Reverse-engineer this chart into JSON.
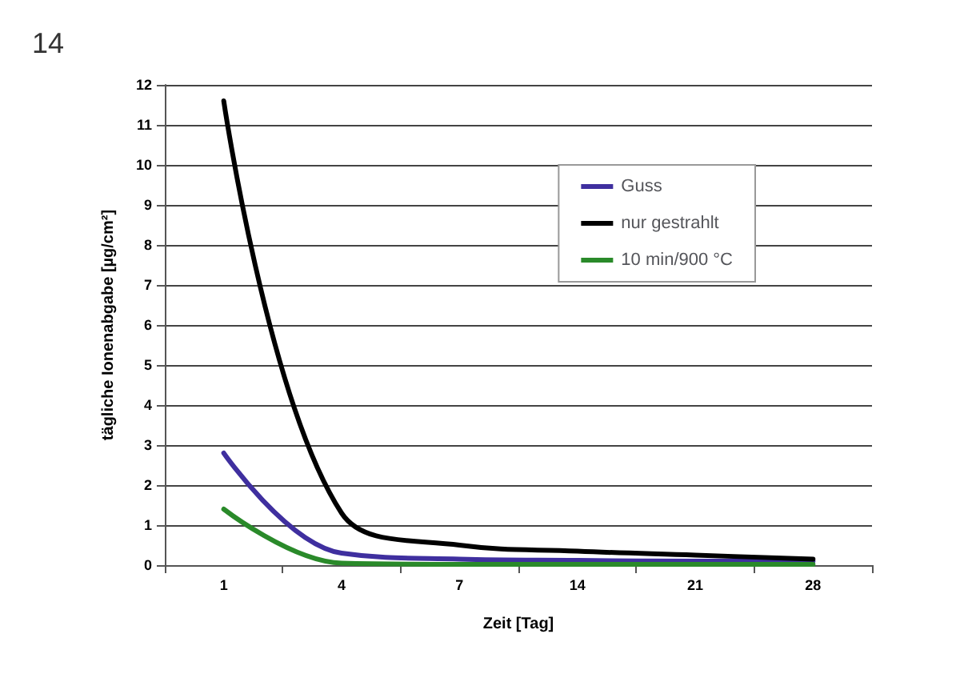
{
  "chart_data": {
    "type": "line",
    "annotations": [
      "14"
    ],
    "xlabel": "Zeit [Tag]",
    "ylabel": "tägliche Ionenabgabe [µg/cm²]",
    "categories": [
      "1",
      "4",
      "7",
      "14",
      "21",
      "28"
    ],
    "series": [
      {
        "name": "Guss",
        "color": "#3f2f9f",
        "values": [
          2.8,
          0.3,
          0.15,
          0.12,
          0.1,
          0.1
        ]
      },
      {
        "name": "nur gestrahlt",
        "color": "#000000",
        "values": [
          11.6,
          1.3,
          0.5,
          0.35,
          0.25,
          0.15
        ]
      },
      {
        "name": "10 min/900 °C",
        "color": "#2a8a2a",
        "values": [
          1.4,
          0.05,
          0.02,
          0.02,
          0.02,
          0.02
        ]
      }
    ],
    "ylim": [
      0,
      12
    ],
    "yticks": [
      0,
      1,
      2,
      3,
      4,
      5,
      6,
      7,
      8,
      9,
      10,
      11,
      12
    ],
    "grid": "y",
    "legend": "top right",
    "marker": "none",
    "line_style": "solid"
  }
}
